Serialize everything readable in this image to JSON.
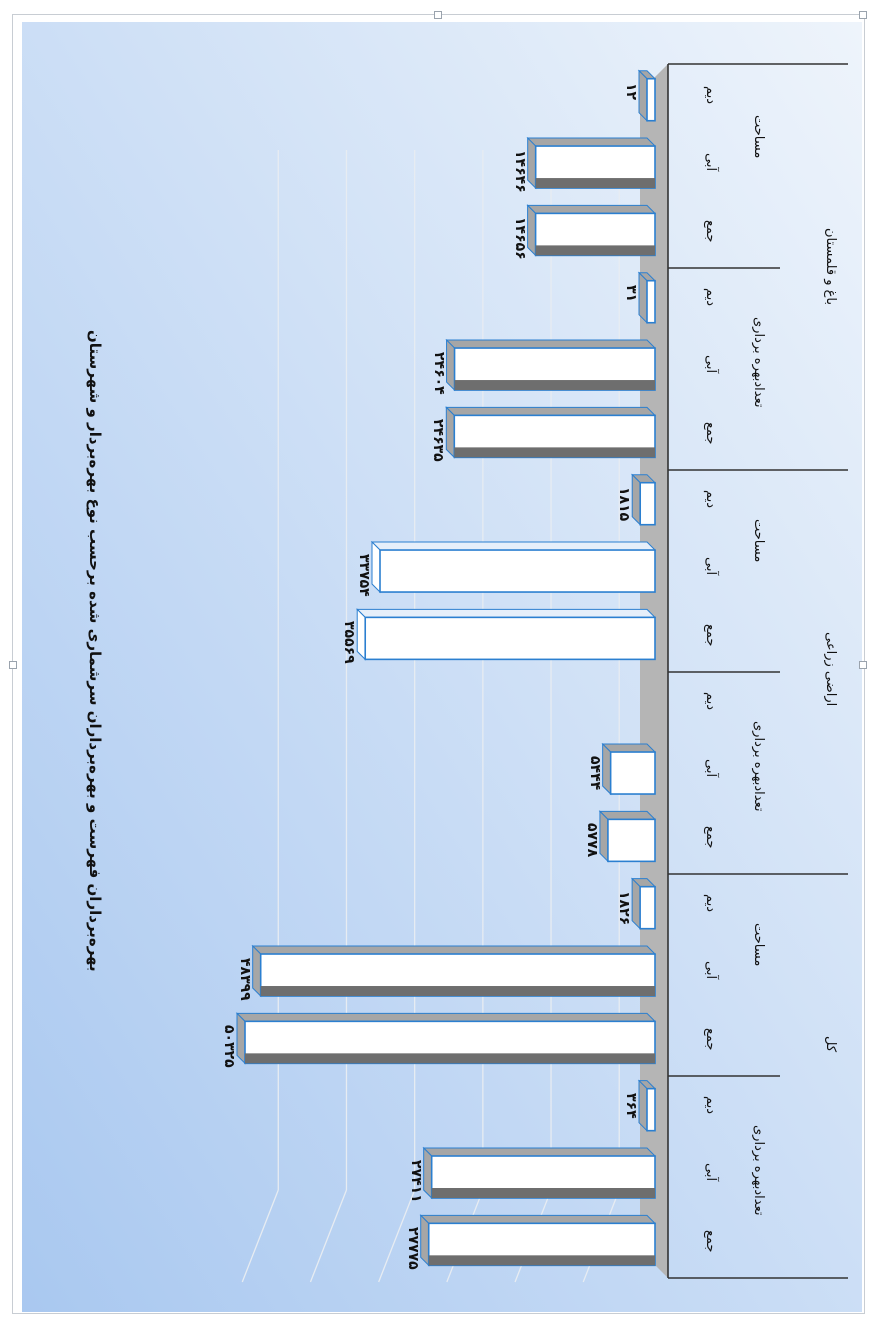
{
  "chart_data": {
    "type": "bar",
    "title": "بهره‌برداران فهرست و بهره‌برداران سرشماری شده برحسب نوع بهره‌بردار و شهرستان",
    "orientation": "rotated-90",
    "categories": [
      "جمع",
      "آبی",
      "دیم",
      "جمع",
      "آبی",
      "دیم",
      "جمع",
      "آبی",
      "دیم",
      "جمع",
      "آبی",
      "دیم",
      "جمع",
      "آبی",
      "دیم",
      "جمع",
      "آبی",
      "دیم"
    ],
    "values": [
      27775,
      27411,
      364,
      50325,
      48399,
      1826,
      5778,
      5444,
      null,
      35569,
      33754,
      1815,
      24635,
      24604,
      31,
      14656,
      14646,
      12
    ],
    "value_labels": [
      "۲۷۷۷۵",
      "۲۷۴۱۱",
      "۳۶۴",
      "۵۰۳۲۵",
      "۴۸۳۹۹",
      "۱۸۲۶",
      "۵۷۷۸",
      "۵۴۴۴",
      "",
      "۳۵۵۶۹",
      "۳۳۷۵۴",
      "۱۸۱۵",
      "۲۴۶۳۵",
      "۲۴۶۰۴",
      "۳۱",
      "۱۴۶۵۶",
      "۱۴۶۴۶",
      "۱۲"
    ],
    "subgroup_labels": [
      "تعدادبهره برداری",
      "مساحت",
      "تعدادبهره برداری",
      "مساحت",
      "تعدادبهره برداری",
      "مساحت"
    ],
    "group_labels": [
      "کل",
      "اراضی زراعی",
      "باغ و قلمستان"
    ],
    "ylim": [
      0,
      55000
    ],
    "grid": true,
    "colors": {
      "bar_fill": "#ffffff",
      "bar_edge": "#2b7fd0",
      "bar_shadow": "#a6a6a6",
      "bar_shadow_dark": "#6e6e6e",
      "floor": "#b5b5b5",
      "bg_start": "#a9c8f0",
      "bg_end": "#eef4fb"
    }
  }
}
